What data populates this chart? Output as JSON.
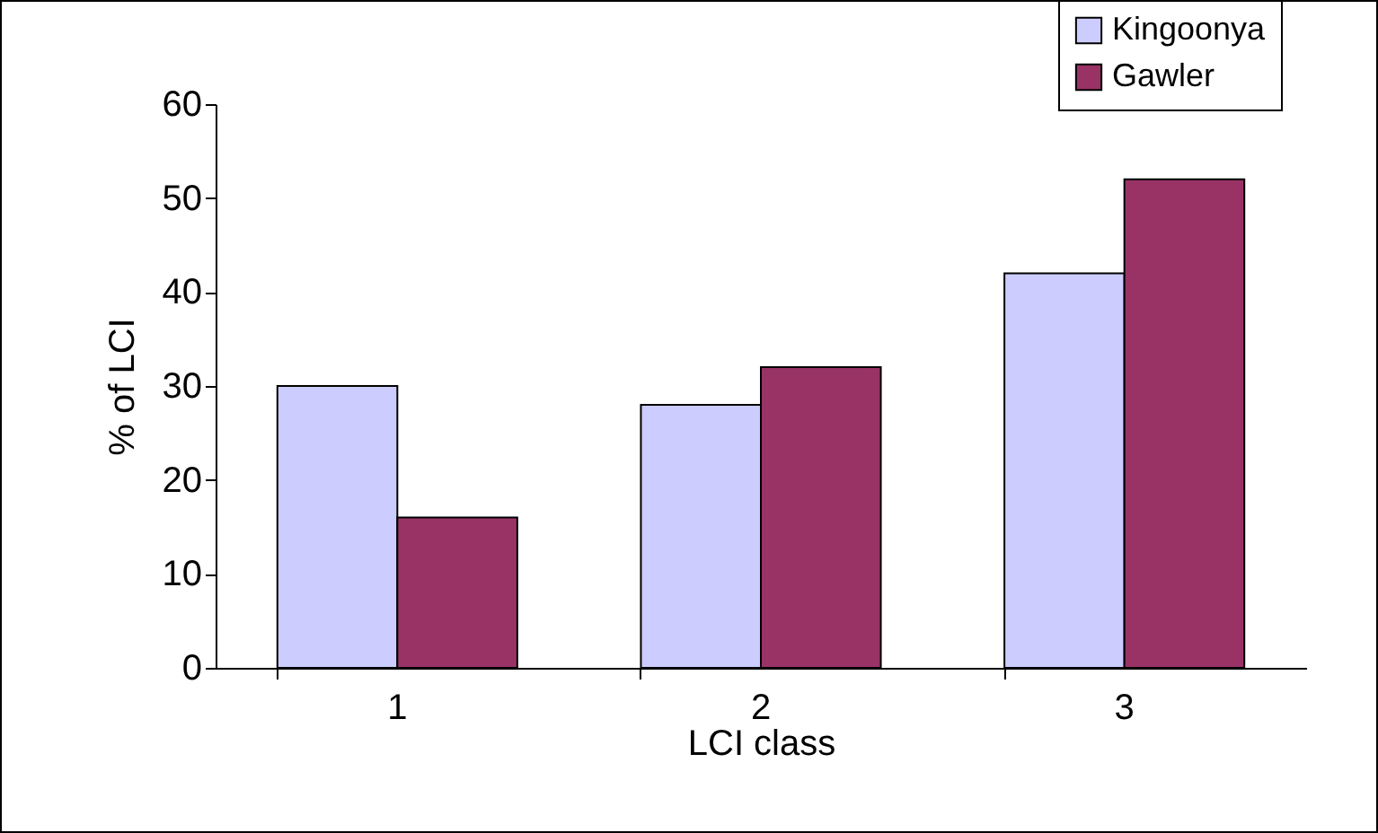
{
  "chart_data": {
    "type": "bar",
    "xlabel": "LCI class",
    "ylabel": "% of LCI",
    "categories": [
      "1",
      "2",
      "3"
    ],
    "series": [
      {
        "name": "Kingoonya",
        "color": "#ccccff",
        "values": [
          30,
          28,
          42
        ]
      },
      {
        "name": "Gawler",
        "color": "#993366",
        "values": [
          16,
          32,
          52
        ]
      }
    ],
    "ylim": [
      0,
      60
    ],
    "yticks": [
      0,
      10,
      20,
      30,
      40,
      50,
      60
    ],
    "grid": false,
    "legend": "top right"
  }
}
